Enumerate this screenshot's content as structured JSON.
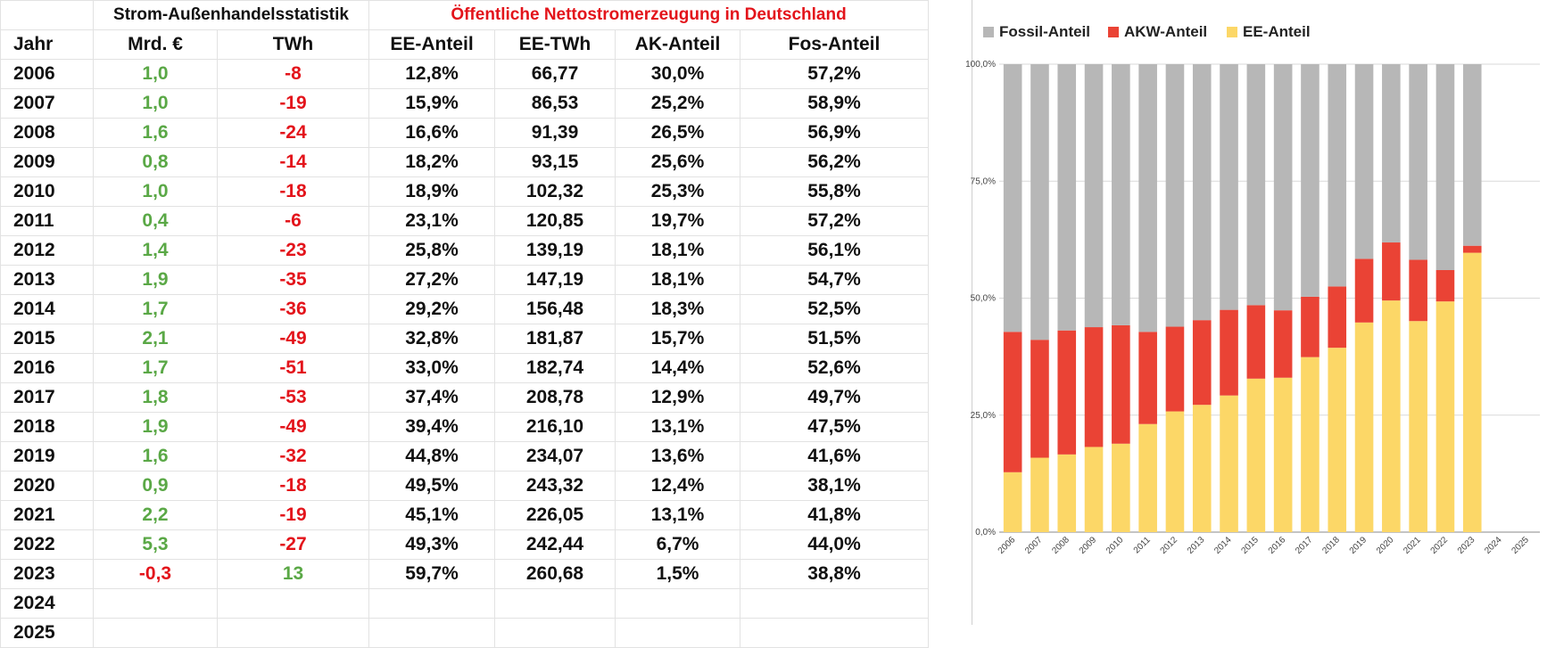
{
  "table": {
    "group_trade": "Strom-Außenhandelsstatistik",
    "group_generation": "Öffentliche Nettostromerzeugung in Deutschland",
    "headers": [
      "Jahr",
      "Mrd. €",
      "TWh",
      "EE-Anteil",
      "EE-TWh",
      "AK-Anteil",
      "Fos-Anteil"
    ],
    "rows": [
      [
        "2006",
        "1,0",
        "-8",
        "12,8%",
        "66,77",
        "30,0%",
        "57,2%"
      ],
      [
        "2007",
        "1,0",
        "-19",
        "15,9%",
        "86,53",
        "25,2%",
        "58,9%"
      ],
      [
        "2008",
        "1,6",
        "-24",
        "16,6%",
        "91,39",
        "26,5%",
        "56,9%"
      ],
      [
        "2009",
        "0,8",
        "-14",
        "18,2%",
        "93,15",
        "25,6%",
        "56,2%"
      ],
      [
        "2010",
        "1,0",
        "-18",
        "18,9%",
        "102,32",
        "25,3%",
        "55,8%"
      ],
      [
        "2011",
        "0,4",
        "-6",
        "23,1%",
        "120,85",
        "19,7%",
        "57,2%"
      ],
      [
        "2012",
        "1,4",
        "-23",
        "25,8%",
        "139,19",
        "18,1%",
        "56,1%"
      ],
      [
        "2013",
        "1,9",
        "-35",
        "27,2%",
        "147,19",
        "18,1%",
        "54,7%"
      ],
      [
        "2014",
        "1,7",
        "-36",
        "29,2%",
        "156,48",
        "18,3%",
        "52,5%"
      ],
      [
        "2015",
        "2,1",
        "-49",
        "32,8%",
        "181,87",
        "15,7%",
        "51,5%"
      ],
      [
        "2016",
        "1,7",
        "-51",
        "33,0%",
        "182,74",
        "14,4%",
        "52,6%"
      ],
      [
        "2017",
        "1,8",
        "-53",
        "37,4%",
        "208,78",
        "12,9%",
        "49,7%"
      ],
      [
        "2018",
        "1,9",
        "-49",
        "39,4%",
        "216,10",
        "13,1%",
        "47,5%"
      ],
      [
        "2019",
        "1,6",
        "-32",
        "44,8%",
        "234,07",
        "13,6%",
        "41,6%"
      ],
      [
        "2020",
        "0,9",
        "-18",
        "49,5%",
        "243,32",
        "12,4%",
        "38,1%"
      ],
      [
        "2021",
        "2,2",
        "-19",
        "45,1%",
        "226,05",
        "13,1%",
        "41,8%"
      ],
      [
        "2022",
        "5,3",
        "-27",
        "49,3%",
        "242,44",
        "6,7%",
        "44,0%"
      ],
      [
        "2023",
        "-0,3",
        "13",
        "59,7%",
        "260,68",
        "1,5%",
        "38,8%"
      ],
      [
        "2024",
        "",
        "",
        "",
        "",
        "",
        ""
      ],
      [
        "2025",
        "",
        "",
        "",
        "",
        "",
        ""
      ]
    ],
    "colors": {
      "positive": "#5aa846",
      "negative": "#e3141b",
      "text": "#111111"
    }
  },
  "chart_data": {
    "type": "bar",
    "stacked": true,
    "categories": [
      "2006",
      "2007",
      "2008",
      "2009",
      "2010",
      "2011",
      "2012",
      "2013",
      "2014",
      "2015",
      "2016",
      "2017",
      "2018",
      "2019",
      "2020",
      "2021",
      "2022",
      "2023",
      "2024",
      "2025"
    ],
    "series": [
      {
        "name": "EE-Anteil",
        "color": "#fcd767",
        "values": [
          12.8,
          15.9,
          16.6,
          18.2,
          18.9,
          23.1,
          25.8,
          27.2,
          29.2,
          32.8,
          33.0,
          37.4,
          39.4,
          44.8,
          49.5,
          45.1,
          49.3,
          59.7,
          null,
          null
        ]
      },
      {
        "name": "AKW-Anteil",
        "color": "#ea4335",
        "values": [
          30.0,
          25.2,
          26.5,
          25.6,
          25.3,
          19.7,
          18.1,
          18.1,
          18.3,
          15.7,
          14.4,
          12.9,
          13.1,
          13.6,
          12.4,
          13.1,
          6.7,
          1.5,
          null,
          null
        ]
      },
      {
        "name": "Fossil-Anteil",
        "color": "#b7b7b7",
        "values": [
          57.2,
          58.9,
          56.9,
          56.2,
          55.8,
          57.2,
          56.1,
          54.7,
          52.5,
          51.5,
          52.6,
          49.7,
          47.5,
          41.6,
          38.1,
          41.8,
          44.0,
          38.8,
          null,
          null
        ]
      }
    ],
    "legend": [
      "Fossil-Anteil",
      "AKW-Anteil",
      "EE-Anteil"
    ],
    "legend_position": "top",
    "yticks": [
      "0,0%",
      "25,0%",
      "50,0%",
      "75,0%",
      "100,0%"
    ],
    "ylim": [
      0,
      100
    ],
    "grid": true
  }
}
